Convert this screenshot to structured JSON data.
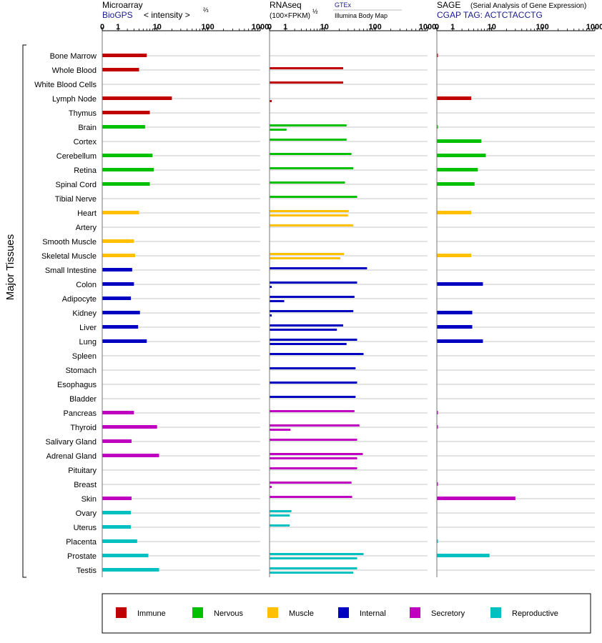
{
  "panels": {
    "microarray": {
      "title": "Microarray",
      "source": "BioGPS",
      "unit": "< intensity >",
      "unit_exp": "⅔"
    },
    "rnaseq": {
      "title": "RNAseq",
      "unit": "(100×FPKM)",
      "unit_exp": "½",
      "source1": "GTEx",
      "source2": "Illumina Body Map"
    },
    "sage": {
      "title": "SAGE",
      "subtitle": "(Serial Analysis of Gene Expression)",
      "tag": "CGAP TAG: ACTCTACCTG"
    }
  },
  "ylabel": "Major Tissues",
  "legend": [
    {
      "label": "Immune",
      "color": "#c00000"
    },
    {
      "label": "Nervous",
      "color": "#00c000"
    },
    {
      "label": "Muscle",
      "color": "#ffc000"
    },
    {
      "label": "Internal",
      "color": "#0000c0"
    },
    {
      "label": "Secretory",
      "color": "#c000c0"
    },
    {
      "label": "Reproductive",
      "color": "#00c0c0"
    }
  ],
  "chart_data": [
    {
      "type": "bar",
      "title": "Microarray",
      "scale": "log1p",
      "xlim": [
        0,
        1000
      ],
      "xticks": [
        "0",
        "1",
        "10",
        "100",
        "1000"
      ],
      "categories": [
        "Bone Marrow",
        "Whole Blood",
        "White Blood Cells",
        "Lymph Node",
        "Thymus",
        "Brain",
        "Cortex",
        "Cerebellum",
        "Retina",
        "Spinal Cord",
        "Tibial Nerve",
        "Heart",
        "Artery",
        "Smooth Muscle",
        "Skeletal Muscle",
        "Small Intestine",
        "Colon",
        "Adipocyte",
        "Kidney",
        "Liver",
        "Lung",
        "Spleen",
        "Stomach",
        "Esophagus",
        "Bladder",
        "Pancreas",
        "Thyroid",
        "Salivary Gland",
        "Adrenal Gland",
        "Pituitary",
        "Breast",
        "Skin",
        "Ovary",
        "Uterus",
        "Placenta",
        "Prostate",
        "Testis"
      ],
      "groups": [
        "Immune",
        "Immune",
        "Immune",
        "Immune",
        "Immune",
        "Nervous",
        "Nervous",
        "Nervous",
        "Nervous",
        "Nervous",
        "Nervous",
        "Muscle",
        "Muscle",
        "Muscle",
        "Muscle",
        "Internal",
        "Internal",
        "Internal",
        "Internal",
        "Internal",
        "Internal",
        "Internal",
        "Internal",
        "Internal",
        "Internal",
        "Secretory",
        "Secretory",
        "Secretory",
        "Secretory",
        "Secretory",
        "Secretory",
        "Secretory",
        "Reproductive",
        "Reproductive",
        "Reproductive",
        "Reproductive",
        "Reproductive"
      ],
      "values": [
        6,
        4,
        null,
        20,
        7,
        5.5,
        null,
        8,
        8.5,
        7,
        null,
        4,
        null,
        3,
        3.2,
        2.7,
        3,
        2.5,
        4.2,
        3.8,
        6,
        null,
        null,
        null,
        null,
        3,
        10,
        2.6,
        11,
        null,
        null,
        2.6,
        2.5,
        2.5,
        3.6,
        6.5,
        11
      ]
    },
    {
      "type": "bar",
      "title": "RNAseq",
      "scale": "log1p",
      "xlim": [
        0,
        1000
      ],
      "xticks": [
        "0",
        "1",
        "10",
        "100",
        "1000"
      ],
      "series": [
        {
          "name": "GTEx",
          "values": [
            null,
            24,
            24,
            null,
            null,
            28,
            28,
            35,
            38,
            26,
            45,
            31,
            38,
            null,
            25,
            70,
            45,
            40,
            38,
            24,
            45,
            60,
            42,
            45,
            42,
            40,
            50,
            45,
            58,
            45,
            35,
            36,
            1.6,
            1.4,
            null,
            60,
            45
          ]
        },
        {
          "name": "Illumina Body Map",
          "values": [
            null,
            null,
            null,
            0.1,
            null,
            1.1,
            null,
            null,
            null,
            null,
            null,
            30,
            null,
            null,
            21,
            null,
            0.1,
            0.9,
            0.1,
            18,
            28,
            null,
            null,
            null,
            null,
            null,
            1.5,
            null,
            45,
            null,
            0.1,
            null,
            1.4,
            null,
            null,
            45,
            38
          ]
        }
      ]
    },
    {
      "type": "bar",
      "title": "SAGE",
      "scale": "log1p",
      "xlim": [
        0,
        1000
      ],
      "xticks": [
        "0",
        "1",
        "10",
        "100",
        "1000"
      ],
      "values": [
        0.03,
        null,
        null,
        3.5,
        null,
        0.03,
        6,
        7.5,
        5,
        4.2,
        null,
        3.5,
        null,
        null,
        3.5,
        null,
        6.5,
        null,
        3.7,
        3.7,
        6.5,
        null,
        null,
        null,
        null,
        0.03,
        0.03,
        null,
        null,
        null,
        0.03,
        30,
        null,
        null,
        0.03,
        9,
        null
      ]
    }
  ]
}
